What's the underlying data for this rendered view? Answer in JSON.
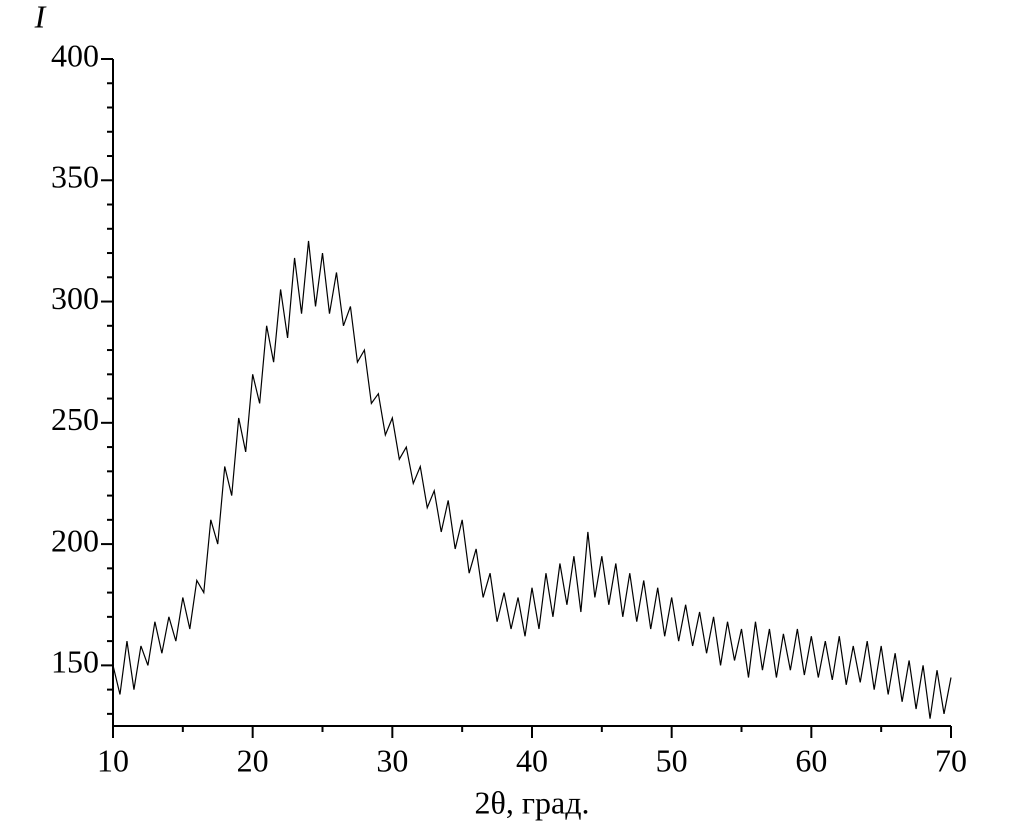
{
  "chart_data": {
    "type": "line",
    "x_label": "2θ, град.",
    "y_label": "I",
    "x": [
      10,
      10.5,
      11,
      11.5,
      12,
      12.5,
      13,
      13.5,
      14,
      14.5,
      15,
      15.5,
      16,
      16.5,
      17,
      17.5,
      18,
      18.5,
      19,
      19.5,
      20,
      20.5,
      21,
      21.5,
      22,
      22.5,
      23,
      23.5,
      24,
      24.5,
      25,
      25.5,
      26,
      26.5,
      27,
      27.5,
      28,
      28.5,
      29,
      29.5,
      30,
      30.5,
      31,
      31.5,
      32,
      32.5,
      33,
      33.5,
      34,
      34.5,
      35,
      35.5,
      36,
      36.5,
      37,
      37.5,
      38,
      38.5,
      39,
      39.5,
      40,
      40.5,
      41,
      41.5,
      42,
      42.5,
      43,
      43.5,
      44,
      44.5,
      45,
      45.5,
      46,
      46.5,
      47,
      47.5,
      48,
      48.5,
      49,
      49.5,
      50,
      50.5,
      51,
      51.5,
      52,
      52.5,
      53,
      53.5,
      54,
      54.5,
      55,
      55.5,
      56,
      56.5,
      57,
      57.5,
      58,
      58.5,
      59,
      59.5,
      60,
      60.5,
      61,
      61.5,
      62,
      62.5,
      63,
      63.5,
      64,
      64.5,
      65,
      65.5,
      66,
      66.5,
      67,
      67.5,
      68,
      68.5,
      69,
      69.5,
      70
    ],
    "values": [
      150,
      138,
      160,
      140,
      158,
      150,
      168,
      155,
      170,
      160,
      178,
      165,
      185,
      180,
      210,
      200,
      232,
      220,
      252,
      238,
      270,
      258,
      290,
      275,
      305,
      285,
      318,
      295,
      325,
      298,
      320,
      295,
      312,
      290,
      298,
      275,
      280,
      258,
      262,
      245,
      252,
      235,
      240,
      225,
      232,
      215,
      222,
      205,
      218,
      198,
      210,
      188,
      198,
      178,
      188,
      168,
      180,
      165,
      178,
      162,
      182,
      165,
      188,
      170,
      192,
      175,
      195,
      172,
      205,
      178,
      195,
      175,
      192,
      170,
      188,
      168,
      185,
      165,
      182,
      162,
      178,
      160,
      175,
      158,
      172,
      155,
      170,
      150,
      168,
      152,
      165,
      145,
      168,
      148,
      165,
      145,
      163,
      148,
      165,
      146,
      162,
      145,
      160,
      144,
      162,
      142,
      158,
      143,
      160,
      140,
      158,
      138,
      155,
      135,
      152,
      132,
      150,
      128,
      148,
      130,
      145
    ],
    "color": "#000000",
    "xlim": [
      10,
      70
    ],
    "xticks": [
      10,
      20,
      30,
      40,
      50,
      60,
      70
    ],
    "x_minor_ticks": [
      15,
      25,
      35,
      45,
      55,
      65
    ],
    "ylim": [
      125,
      400
    ],
    "yticks": [
      150,
      200,
      250,
      300,
      350,
      400
    ],
    "y_minor_ticks": [
      130,
      140,
      160,
      170,
      180,
      190,
      210,
      220,
      230,
      240,
      260,
      270,
      280,
      290,
      310,
      320,
      330,
      340,
      360,
      370,
      380,
      390
    ],
    "grid": false
  }
}
